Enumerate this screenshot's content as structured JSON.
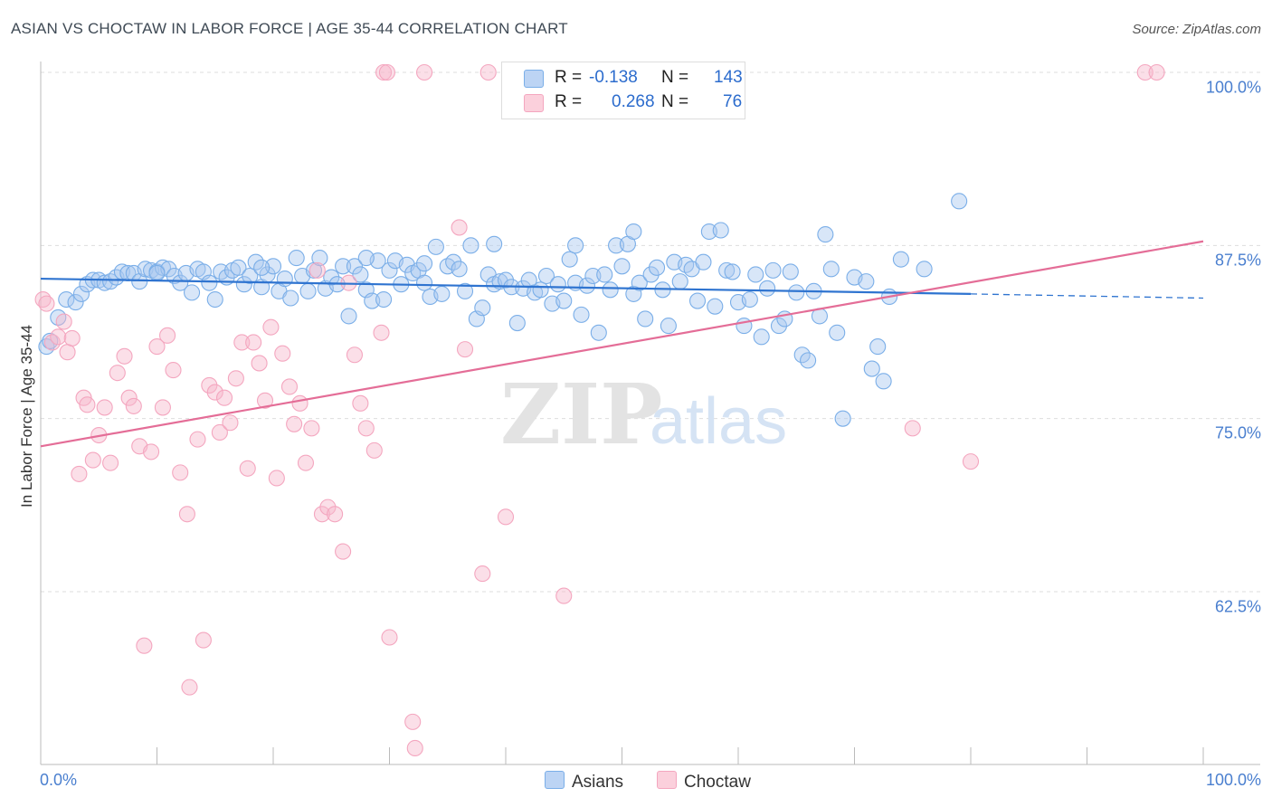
{
  "header": {
    "title": "ASIAN VS CHOCTAW IN LABOR FORCE | AGE 35-44 CORRELATION CHART",
    "source": "Source: ZipAtlas.com"
  },
  "watermark": {
    "part1": "ZIP",
    "part2": "atlas"
  },
  "legend": {
    "r_label": "R =",
    "n_label": "N =",
    "items": [
      {
        "name": "Asians",
        "r": "-0.138",
        "n": "143",
        "color": "#a9c8f0"
      },
      {
        "name": "Choctaw",
        "r": "0.268",
        "n": "76",
        "color": "#f7b9cc"
      }
    ]
  },
  "chart_data": {
    "type": "scatter",
    "title": "ASIAN VS CHOCTAW IN LABOR FORCE | AGE 35-44 CORRELATION CHART",
    "xlabel": "",
    "ylabel": "In Labor Force | Age 35-44",
    "xlim": [
      0,
      100
    ],
    "ylim": [
      50.5,
      101.5
    ],
    "x_tick_labels": [
      "0.0%",
      "100.0%"
    ],
    "y_ticks": [
      {
        "value": 100.0,
        "label": "100.0%"
      },
      {
        "value": 87.5,
        "label": "87.5%"
      },
      {
        "value": 75.0,
        "label": "75.0%"
      },
      {
        "value": 62.5,
        "label": "62.5%"
      }
    ],
    "grid": "horizontal-dashed",
    "legend_position": "top-center",
    "series": [
      {
        "name": "Asians",
        "color": "#7aaee8",
        "line_color": "#2f74d0",
        "r": -0.138,
        "n": 143,
        "trend": {
          "x": [
            0,
            80
          ],
          "y": [
            85.1,
            84.0
          ],
          "dashed_to_x": 100,
          "dashed_to_y": 83.7
        },
        "points": [
          [
            0.5,
            80.2
          ],
          [
            0.8,
            80.6
          ],
          [
            1.5,
            82.3
          ],
          [
            2.2,
            83.6
          ],
          [
            3.0,
            83.4
          ],
          [
            3.5,
            84.0
          ],
          [
            4.0,
            84.7
          ],
          [
            4.5,
            85.0
          ],
          [
            5.0,
            85.0
          ],
          [
            5.5,
            84.8
          ],
          [
            6.0,
            84.9
          ],
          [
            6.5,
            85.2
          ],
          [
            7.0,
            85.6
          ],
          [
            7.5,
            85.5
          ],
          [
            8.0,
            85.5
          ],
          [
            8.5,
            84.9
          ],
          [
            9.0,
            85.8
          ],
          [
            9.5,
            85.7
          ],
          [
            10.0,
            85.6
          ],
          [
            10.5,
            85.9
          ],
          [
            11.0,
            85.8
          ],
          [
            11.5,
            85.3
          ],
          [
            12.0,
            84.8
          ],
          [
            12.5,
            85.5
          ],
          [
            13.0,
            84.1
          ],
          [
            13.5,
            85.8
          ],
          [
            14.0,
            85.6
          ],
          [
            14.5,
            84.8
          ],
          [
            15.0,
            83.6
          ],
          [
            15.5,
            85.6
          ],
          [
            16.0,
            85.2
          ],
          [
            16.5,
            85.7
          ],
          [
            17.0,
            85.9
          ],
          [
            17.5,
            84.7
          ],
          [
            18.0,
            85.3
          ],
          [
            18.5,
            86.3
          ],
          [
            19.0,
            84.5
          ],
          [
            19.5,
            85.4
          ],
          [
            20.0,
            86.0
          ],
          [
            20.5,
            84.2
          ],
          [
            21.0,
            85.1
          ],
          [
            21.5,
            83.7
          ],
          [
            22.0,
            86.6
          ],
          [
            22.5,
            85.3
          ],
          [
            23.0,
            84.2
          ],
          [
            23.5,
            85.7
          ],
          [
            24.0,
            86.6
          ],
          [
            24.5,
            84.4
          ],
          [
            25.0,
            85.2
          ],
          [
            25.5,
            84.7
          ],
          [
            26.0,
            86.0
          ],
          [
            26.5,
            82.4
          ],
          [
            27.0,
            86.0
          ],
          [
            27.5,
            85.4
          ],
          [
            28.0,
            84.3
          ],
          [
            28.5,
            83.5
          ],
          [
            29.0,
            86.4
          ],
          [
            29.5,
            83.6
          ],
          [
            30.0,
            85.7
          ],
          [
            30.5,
            86.4
          ],
          [
            31.0,
            84.7
          ],
          [
            31.5,
            86.1
          ],
          [
            32.0,
            85.5
          ],
          [
            32.5,
            85.7
          ],
          [
            33.0,
            86.2
          ],
          [
            33.5,
            83.8
          ],
          [
            34.0,
            87.4
          ],
          [
            34.5,
            84.0
          ],
          [
            35.0,
            86.0
          ],
          [
            35.5,
            86.3
          ],
          [
            36.0,
            85.8
          ],
          [
            36.5,
            84.2
          ],
          [
            37.0,
            87.5
          ],
          [
            37.5,
            82.2
          ],
          [
            38.0,
            83.0
          ],
          [
            38.5,
            85.4
          ],
          [
            39.0,
            84.7
          ],
          [
            39.5,
            84.9
          ],
          [
            40.0,
            85.0
          ],
          [
            40.5,
            84.5
          ],
          [
            41.0,
            81.9
          ],
          [
            41.5,
            84.4
          ],
          [
            42.0,
            85.0
          ],
          [
            42.5,
            84.1
          ],
          [
            43.0,
            84.3
          ],
          [
            43.5,
            85.3
          ],
          [
            44.0,
            83.3
          ],
          [
            44.5,
            84.7
          ],
          [
            45.0,
            83.5
          ],
          [
            45.5,
            86.5
          ],
          [
            46.0,
            84.8
          ],
          [
            46.5,
            82.5
          ],
          [
            47.0,
            84.6
          ],
          [
            47.5,
            85.3
          ],
          [
            48.0,
            81.2
          ],
          [
            48.5,
            85.4
          ],
          [
            49.0,
            84.3
          ],
          [
            49.5,
            87.5
          ],
          [
            50.0,
            86.0
          ],
          [
            50.5,
            87.6
          ],
          [
            51.0,
            84.0
          ],
          [
            51.5,
            84.8
          ],
          [
            52.0,
            82.2
          ],
          [
            52.5,
            85.4
          ],
          [
            53.0,
            85.9
          ],
          [
            53.5,
            84.3
          ],
          [
            54.0,
            81.7
          ],
          [
            54.5,
            86.3
          ],
          [
            55.0,
            84.9
          ],
          [
            55.5,
            86.1
          ],
          [
            56.0,
            85.8
          ],
          [
            56.5,
            83.5
          ],
          [
            57.0,
            86.3
          ],
          [
            57.5,
            88.5
          ],
          [
            58.0,
            83.1
          ],
          [
            58.5,
            88.6
          ],
          [
            59.0,
            85.7
          ],
          [
            59.5,
            85.6
          ],
          [
            60.0,
            83.4
          ],
          [
            60.5,
            81.7
          ],
          [
            61.0,
            83.6
          ],
          [
            61.5,
            85.4
          ],
          [
            62.0,
            80.9
          ],
          [
            62.5,
            84.4
          ],
          [
            63.0,
            85.7
          ],
          [
            63.5,
            81.7
          ],
          [
            64.0,
            82.2
          ],
          [
            64.5,
            85.6
          ],
          [
            65.0,
            84.1
          ],
          [
            65.5,
            79.6
          ],
          [
            66.0,
            79.2
          ],
          [
            66.5,
            84.2
          ],
          [
            67.0,
            82.4
          ],
          [
            67.5,
            88.3
          ],
          [
            68.0,
            85.8
          ],
          [
            68.5,
            81.2
          ],
          [
            69.0,
            75.0
          ],
          [
            70.0,
            85.2
          ],
          [
            71.0,
            84.9
          ],
          [
            71.5,
            78.6
          ],
          [
            72.0,
            80.2
          ],
          [
            72.5,
            77.7
          ],
          [
            73.0,
            83.8
          ],
          [
            74.0,
            86.5
          ],
          [
            76.0,
            85.8
          ],
          [
            79.0,
            90.7
          ],
          [
            51.0,
            88.5
          ],
          [
            46.0,
            87.5
          ],
          [
            39.0,
            87.6
          ],
          [
            33.0,
            84.8
          ],
          [
            28.0,
            86.6
          ],
          [
            19.0,
            85.9
          ],
          [
            10.0,
            85.5
          ]
        ]
      },
      {
        "name": "Choctaw",
        "color": "#f4a6bf",
        "line_color": "#e46d97",
        "r": 0.268,
        "n": 76,
        "trend": {
          "x": [
            0,
            100
          ],
          "y": [
            73.0,
            87.8
          ]
        },
        "points": [
          [
            0.2,
            83.6
          ],
          [
            0.5,
            83.3
          ],
          [
            1.0,
            80.5
          ],
          [
            1.5,
            80.9
          ],
          [
            2.0,
            82.0
          ],
          [
            2.3,
            79.8
          ],
          [
            2.7,
            80.8
          ],
          [
            3.3,
            71.0
          ],
          [
            3.7,
            76.5
          ],
          [
            4.0,
            76.0
          ],
          [
            4.5,
            72.0
          ],
          [
            5.0,
            73.8
          ],
          [
            5.5,
            75.8
          ],
          [
            6.0,
            71.8
          ],
          [
            6.6,
            78.3
          ],
          [
            7.2,
            79.5
          ],
          [
            7.6,
            76.5
          ],
          [
            8.0,
            75.9
          ],
          [
            8.5,
            73.0
          ],
          [
            8.9,
            58.6
          ],
          [
            9.5,
            72.6
          ],
          [
            10.0,
            80.2
          ],
          [
            10.5,
            75.8
          ],
          [
            10.9,
            81.0
          ],
          [
            11.4,
            78.5
          ],
          [
            12.0,
            71.1
          ],
          [
            12.6,
            68.1
          ],
          [
            12.8,
            55.6
          ],
          [
            13.5,
            73.5
          ],
          [
            14.0,
            59.0
          ],
          [
            14.5,
            77.4
          ],
          [
            15.0,
            76.9
          ],
          [
            15.4,
            74.0
          ],
          [
            15.8,
            76.5
          ],
          [
            16.3,
            74.7
          ],
          [
            16.8,
            77.9
          ],
          [
            17.3,
            80.5
          ],
          [
            17.8,
            71.4
          ],
          [
            18.3,
            80.5
          ],
          [
            18.8,
            79.0
          ],
          [
            19.3,
            76.3
          ],
          [
            19.8,
            81.6
          ],
          [
            20.3,
            70.7
          ],
          [
            20.8,
            79.7
          ],
          [
            21.4,
            77.3
          ],
          [
            21.8,
            74.6
          ],
          [
            22.3,
            76.1
          ],
          [
            22.8,
            71.8
          ],
          [
            23.3,
            74.3
          ],
          [
            23.8,
            85.7
          ],
          [
            24.2,
            68.1
          ],
          [
            24.7,
            68.6
          ],
          [
            25.3,
            68.1
          ],
          [
            26.0,
            65.4
          ],
          [
            26.5,
            84.8
          ],
          [
            27.0,
            79.6
          ],
          [
            27.5,
            76.1
          ],
          [
            28.0,
            74.3
          ],
          [
            28.7,
            72.7
          ],
          [
            29.3,
            81.2
          ],
          [
            30.0,
            59.2
          ],
          [
            32.0,
            53.1
          ],
          [
            32.2,
            51.2
          ],
          [
            33.0,
            100.0
          ],
          [
            36.0,
            88.8
          ],
          [
            36.5,
            80.0
          ],
          [
            38.0,
            63.8
          ],
          [
            38.5,
            100.0
          ],
          [
            40.0,
            67.9
          ],
          [
            45.0,
            62.2
          ],
          [
            75.0,
            74.3
          ],
          [
            80.0,
            71.9
          ],
          [
            95.0,
            100.0
          ],
          [
            96.0,
            100.0
          ],
          [
            29.5,
            100.0
          ],
          [
            29.8,
            100.0
          ]
        ]
      }
    ]
  }
}
